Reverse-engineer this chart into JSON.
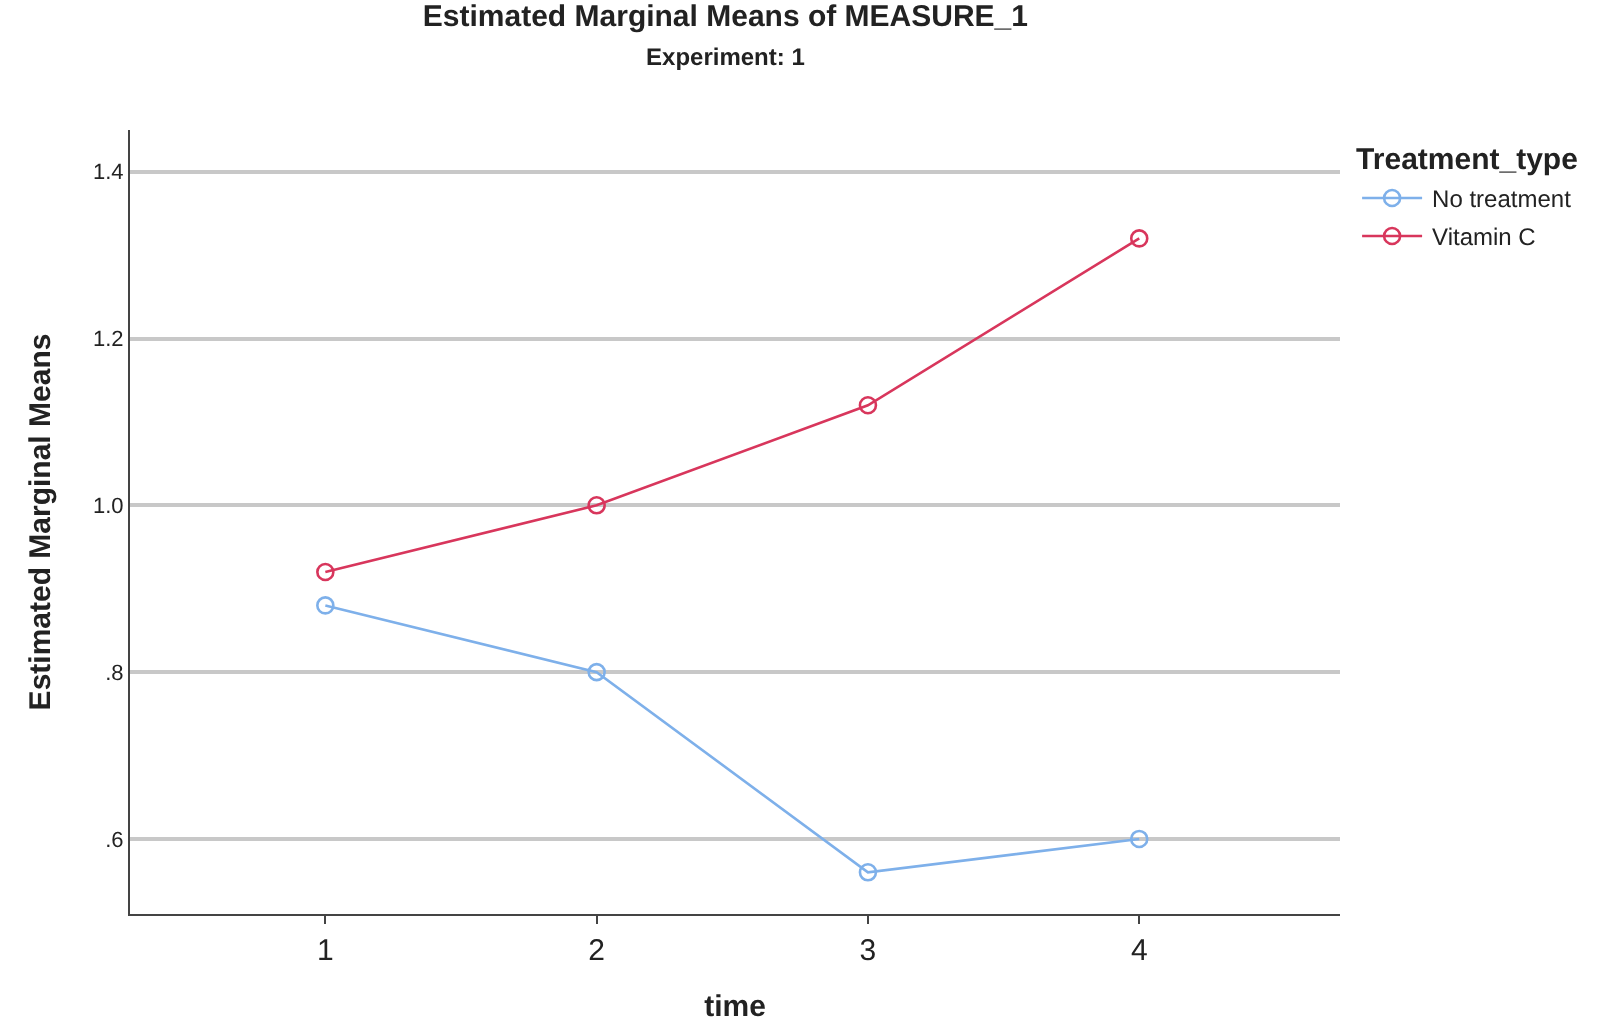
{
  "chart_data": {
    "type": "line",
    "title": "Estimated Marginal Means of MEASURE_1",
    "subtitle": "Experiment: 1",
    "xlabel": "time",
    "ylabel": "Estimated Marginal Means",
    "legend_title": "Treatment_type",
    "categories": [
      "1",
      "2",
      "3",
      "4"
    ],
    "series": [
      {
        "name": "No treatment",
        "color": "#7eb0ea",
        "values": [
          0.88,
          0.8,
          0.56,
          0.6
        ]
      },
      {
        "name": "Vitamin C",
        "color": "#d8365c",
        "values": [
          0.92,
          1.0,
          1.12,
          1.32
        ]
      }
    ],
    "ylim": [
      0.51,
      1.45
    ],
    "yticks": [
      {
        "value": 0.6,
        "label": ".6"
      },
      {
        "value": 0.8,
        "label": ".8"
      },
      {
        "value": 1.0,
        "label": "1.0"
      },
      {
        "value": 1.2,
        "label": "1.2"
      },
      {
        "value": 1.4,
        "label": "1.4"
      }
    ],
    "grid": "y",
    "legend": "top right",
    "marker": "circle",
    "line_style": "solid"
  }
}
